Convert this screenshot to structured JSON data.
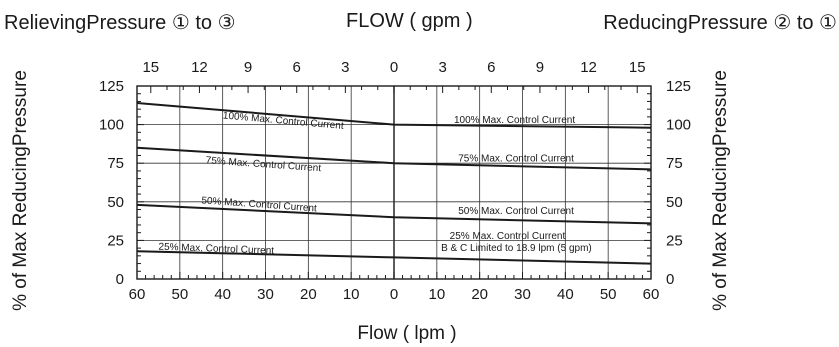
{
  "chart_data": {
    "type": "line",
    "header": {
      "left": "RelievingPressure ① to ③",
      "center": "FLOW ( gpm )",
      "right": "ReducingPressure ② to ①"
    },
    "xlabel": "Flow ( lpm )",
    "ylabel_left": "% of Max ReducingPressure",
    "ylabel_right": "% of Max ReducingPressure",
    "x_lpm_range": [
      -60,
      60
    ],
    "y_range": [
      0,
      125
    ],
    "bottom_ticks": [
      -60,
      -50,
      -40,
      -30,
      -20,
      -10,
      0,
      10,
      20,
      30,
      40,
      50,
      60
    ],
    "bottom_tick_labels": [
      "60",
      "50",
      "40",
      "30",
      "20",
      "10",
      "0",
      "10",
      "20",
      "30",
      "40",
      "50",
      "60"
    ],
    "top_ticks_gpm": [
      -15,
      -12,
      -9,
      -6,
      -3,
      0,
      3,
      6,
      9,
      12,
      15
    ],
    "top_tick_labels": [
      "15",
      "12",
      "9",
      "6",
      "3",
      "0",
      "3",
      "6",
      "9",
      "12",
      "15"
    ],
    "y_ticks": [
      0,
      25,
      50,
      75,
      100,
      125
    ],
    "y_tick_labels": [
      "0",
      "25",
      "50",
      "75",
      "100",
      "125"
    ],
    "grid": true,
    "series": [
      {
        "name": "100% Max. Control Current",
        "x": [
          -60,
          0,
          60
        ],
        "y": [
          114,
          100,
          98
        ]
      },
      {
        "name": "75% Max. Control Current",
        "x": [
          -60,
          0,
          60
        ],
        "y": [
          85,
          75,
          71
        ]
      },
      {
        "name": "50% Max. Control Current",
        "x": [
          -60,
          0,
          60
        ],
        "y": [
          48,
          40,
          36
        ]
      },
      {
        "name": "25% Max. Control Current",
        "x": [
          -60,
          0,
          60
        ],
        "y": [
          18,
          14,
          10
        ]
      }
    ],
    "annotations": [
      {
        "text": "100% Max. Control Current",
        "x": -40,
        "y": 104,
        "angle": 5
      },
      {
        "text": "100% Max. Control Current",
        "x": 14,
        "y": 101,
        "angle": 0
      },
      {
        "text": "75% Max. Control Current",
        "x": -44,
        "y": 75,
        "angle": 4
      },
      {
        "text": "75% Max. Control Current",
        "x": 15,
        "y": 76,
        "angle": 0
      },
      {
        "text": "50% Max. Control Current",
        "x": -45,
        "y": 49,
        "angle": 4
      },
      {
        "text": "50% Max. Control Current",
        "x": 15,
        "y": 42,
        "angle": 0
      },
      {
        "text": "25% Max. Control Current",
        "x": -55,
        "y": 19,
        "angle": 2
      },
      {
        "text": "25% Max. Control Current",
        "x": 13,
        "y": 26,
        "angle": 0
      },
      {
        "text": "B & C Limited to 18.9 lpm (5 gpm)",
        "x": 11,
        "y": 18,
        "angle": 0
      }
    ]
  }
}
